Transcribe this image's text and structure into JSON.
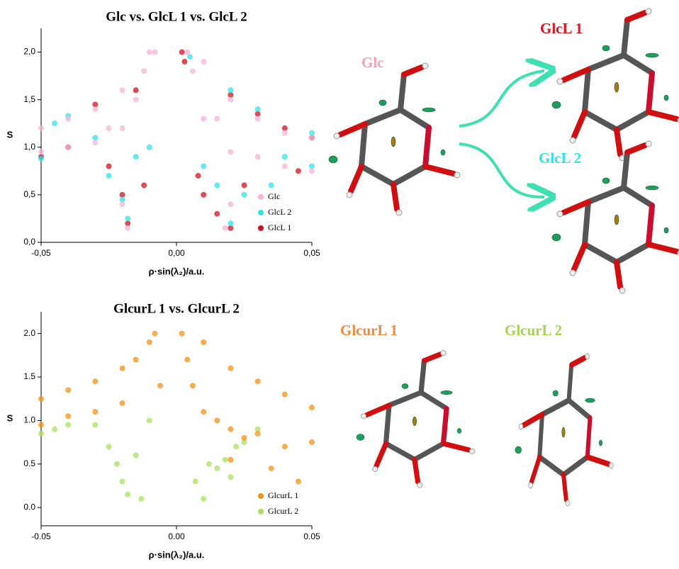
{
  "chart_data": [
    {
      "type": "scatter",
      "title": "Glc vs. GlcL 1 vs. GlcL 2",
      "x_label": "ρ·sin(λ₂)/a.u.",
      "y_label": "S",
      "xlim": [
        -0.05,
        0.05
      ],
      "ylim": [
        0,
        2.25
      ],
      "xticks": [
        {
          "value": -0.05,
          "label": "-0,05"
        },
        {
          "value": 0,
          "label": "0,00"
        },
        {
          "value": 0.05,
          "label": "0,05"
        }
      ],
      "yticks": [
        {
          "value": 0,
          "label": "0,0"
        },
        {
          "value": 0.5,
          "label": "0,5"
        },
        {
          "value": 1,
          "label": "1,0"
        },
        {
          "value": 1.5,
          "label": "1,5"
        },
        {
          "value": 2,
          "label": "2,0"
        }
      ],
      "legend": "lower right",
      "series": [
        {
          "name": "GlcL 1",
          "color": "#d0101c",
          "x": [
            -0.05,
            -0.04,
            -0.03,
            -0.025,
            -0.02,
            -0.018,
            -0.015,
            -0.012,
            0.002,
            0.003,
            0.008,
            0.01,
            0.015,
            0.02,
            0.02,
            0.025,
            0.03,
            0.04,
            0.05,
            0.045
          ],
          "values": [
            0.9,
            1.0,
            1.45,
            0.8,
            0.5,
            0.2,
            1.6,
            0.6,
            2.0,
            1.9,
            0.7,
            0.5,
            0.3,
            0.15,
            1.55,
            0.6,
            1.35,
            1.2,
            1.1,
            0.75
          ]
        },
        {
          "name": "GlcL 2",
          "color": "#2ee3e8",
          "x": [
            -0.05,
            -0.045,
            -0.04,
            -0.03,
            -0.025,
            -0.02,
            -0.018,
            -0.015,
            -0.01,
            0.005,
            0.01,
            0.015,
            0.02,
            0.02,
            0.025,
            0.03,
            0.04,
            0.05,
            0.05,
            0.035
          ],
          "values": [
            0.88,
            1.25,
            1.33,
            1.1,
            0.7,
            0.45,
            0.25,
            0.9,
            1.0,
            1.95,
            0.8,
            0.6,
            0.2,
            1.6,
            0.5,
            1.4,
            0.9,
            0.8,
            1.15,
            0.6
          ]
        },
        {
          "name": "Glc",
          "color": "#f5b3d8",
          "x": [
            -0.05,
            -0.05,
            -0.04,
            -0.04,
            -0.03,
            -0.03,
            -0.025,
            -0.02,
            -0.02,
            -0.015,
            -0.012,
            -0.01,
            -0.008,
            -0.02,
            -0.018,
            0.004,
            0.006,
            0.01,
            0.01,
            0.015,
            0.02,
            0.02,
            0.03,
            0.03,
            0.04,
            0.04,
            0.05,
            0.05,
            0.02,
            0.018
          ],
          "values": [
            0.95,
            1.2,
            1.0,
            1.3,
            1.05,
            1.4,
            1.2,
            1.2,
            1.6,
            1.5,
            1.8,
            2.0,
            2.0,
            0.4,
            0.15,
            2.0,
            1.8,
            1.3,
            1.9,
            1.3,
            0.95,
            1.5,
            0.9,
            1.3,
            0.8,
            1.15,
            0.75,
            1.1,
            0.4,
            0.15
          ]
        }
      ]
    },
    {
      "type": "scatter",
      "title": "GlcurL 1 vs. GlcurL 2",
      "x_label": "ρ·sin(λ₂)/a.u.",
      "y_label": "S",
      "xlim": [
        -0.05,
        0.05
      ],
      "ylim": [
        -0.21,
        2.25
      ],
      "xticks": [
        -0.05,
        {
          "value": 0,
          "label": "0.00"
        },
        0.05
      ],
      "yticks": [
        {
          "value": 0,
          "label": "0.0"
        },
        0.5,
        {
          "value": 1,
          "label": "1.0"
        },
        1.5,
        {
          "value": 2,
          "label": "2.0"
        }
      ],
      "legend": "lower right",
      "series": [
        {
          "name": "GlcurL 2",
          "color": "#a8e05a",
          "x": [
            -0.05,
            -0.045,
            -0.04,
            -0.03,
            -0.025,
            -0.022,
            -0.02,
            -0.018,
            -0.015,
            -0.013,
            -0.01,
            0.007,
            0.01,
            0.012,
            0.015,
            0.018,
            0.02,
            0.022,
            0.025,
            0.03
          ],
          "values": [
            0.85,
            0.9,
            0.95,
            0.95,
            0.7,
            0.5,
            0.3,
            0.15,
            0.6,
            0.1,
            1.0,
            0.3,
            0.1,
            0.5,
            0.45,
            0.55,
            0.35,
            0.7,
            0.75,
            0.9
          ]
        },
        {
          "name": "GlcurL 1",
          "color": "#f7900f",
          "x": [
            -0.05,
            -0.05,
            -0.04,
            -0.04,
            -0.03,
            -0.03,
            -0.02,
            -0.02,
            -0.015,
            -0.01,
            -0.008,
            -0.006,
            0.002,
            0.004,
            0.006,
            0.01,
            0.01,
            0.015,
            0.02,
            0.02,
            0.025,
            0.03,
            0.03,
            0.04,
            0.04,
            0.05,
            0.05,
            0.045,
            0.035,
            0.02
          ],
          "values": [
            0.95,
            1.25,
            1.05,
            1.35,
            1.1,
            1.45,
            1.2,
            1.6,
            1.7,
            1.9,
            2.0,
            1.4,
            2.0,
            1.7,
            1.4,
            1.1,
            1.9,
            1.0,
            0.9,
            1.6,
            0.8,
            0.85,
            1.45,
            0.7,
            1.3,
            0.75,
            1.15,
            0.3,
            0.45,
            0.55
          ]
        }
      ]
    }
  ],
  "molecule_labels": {
    "glc": "Glc",
    "glcl1": "GlcL 1",
    "glcl2": "GlcL 2",
    "glcurl1": "GlcurL 1",
    "glcurl2": "GlcurL 2"
  }
}
